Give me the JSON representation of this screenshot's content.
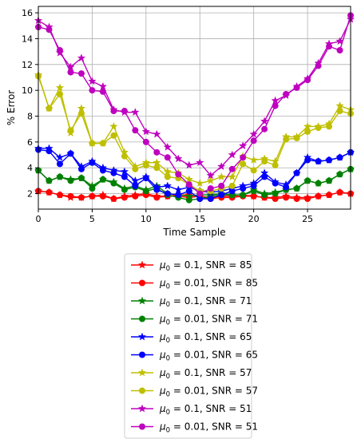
{
  "chart_data": {
    "type": "line",
    "xlabel": "Time Sample",
    "ylabel": "% Error",
    "xlim": [
      0,
      29
    ],
    "ylim": [
      0.8,
      16.5
    ],
    "xticks": [
      0,
      5,
      10,
      15,
      20,
      25
    ],
    "yticks": [
      2,
      4,
      6,
      8,
      10,
      12,
      14,
      16
    ],
    "grid": true,
    "legend_position": "bottom",
    "x": [
      0,
      1,
      2,
      3,
      4,
      5,
      6,
      7,
      8,
      9,
      10,
      11,
      12,
      13,
      14,
      15,
      16,
      17,
      18,
      19,
      20,
      21,
      22,
      23,
      24,
      25,
      26,
      27,
      28,
      29
    ],
    "series": [
      {
        "name": "μ0 = 0.1, SNR = 85",
        "label_math": {
          "sym": "μ",
          "sub": "0",
          "rest": " = 0.1, SNR = 85"
        },
        "color": "#ff0000",
        "marker": "star",
        "values": [
          2.2,
          2.1,
          1.9,
          1.7,
          1.7,
          1.8,
          1.9,
          1.6,
          1.8,
          1.9,
          2.0,
          1.8,
          1.8,
          1.9,
          1.9,
          1.8,
          1.7,
          1.8,
          1.8,
          1.9,
          1.8,
          1.7,
          1.7,
          1.8,
          1.7,
          1.7,
          1.8,
          1.9,
          2.1,
          2.0
        ]
      },
      {
        "name": "μ0 = 0.01, SNR = 85",
        "label_math": {
          "sym": "μ",
          "sub": "0",
          "rest": " = 0.01, SNR = 85"
        },
        "color": "#ff0000",
        "marker": "circle",
        "values": [
          2.2,
          2.1,
          1.9,
          1.8,
          1.7,
          1.8,
          1.8,
          1.6,
          1.7,
          1.8,
          1.9,
          1.7,
          1.8,
          1.8,
          1.7,
          1.8,
          1.6,
          1.7,
          1.7,
          1.8,
          1.8,
          1.7,
          1.6,
          1.7,
          1.6,
          1.6,
          1.8,
          1.9,
          2.1,
          2.0
        ]
      },
      {
        "name": "μ0 = 0.1, SNR = 71",
        "label_math": {
          "sym": "μ",
          "sub": "0",
          "rest": " = 0.1, SNR = 71"
        },
        "color": "#008000",
        "marker": "star",
        "values": [
          3.8,
          3.0,
          3.3,
          3.1,
          3.2,
          2.6,
          3.1,
          2.9,
          2.4,
          2.6,
          2.3,
          2.6,
          2.0,
          1.9,
          1.8,
          1.9,
          1.9,
          2.0,
          1.9,
          1.9,
          2.3,
          2.0,
          2.1,
          2.3,
          2.4,
          3.0,
          2.8,
          3.0,
          3.5,
          3.9
        ]
      },
      {
        "name": "μ0 = 0.01, SNR = 71",
        "label_math": {
          "sym": "μ",
          "sub": "0",
          "rest": " = 0.01, SNR = 71"
        },
        "color": "#008000",
        "marker": "circle",
        "values": [
          3.8,
          3.0,
          3.3,
          3.0,
          3.2,
          2.4,
          3.1,
          2.8,
          2.3,
          2.5,
          2.2,
          2.4,
          1.9,
          1.7,
          1.5,
          1.6,
          1.8,
          1.9,
          1.9,
          1.9,
          2.2,
          1.9,
          2.0,
          2.3,
          2.4,
          3.0,
          2.8,
          3.0,
          3.5,
          3.9
        ]
      },
      {
        "name": "μ0 = 0.1, SNR = 65",
        "label_math": {
          "sym": "μ",
          "sub": "0",
          "rest": " = 0.1, SNR = 65"
        },
        "color": "#0000ff",
        "marker": "star",
        "values": [
          5.5,
          5.5,
          4.8,
          5.1,
          4.1,
          4.5,
          4.0,
          3.8,
          3.7,
          3.0,
          3.3,
          2.5,
          2.6,
          2.3,
          2.5,
          2.2,
          2.1,
          2.2,
          2.4,
          2.6,
          2.8,
          3.6,
          2.9,
          2.7,
          3.6,
          4.8,
          4.5,
          4.6,
          4.8,
          5.2
        ]
      },
      {
        "name": "μ0 = 0.01, SNR = 65",
        "label_math": {
          "sym": "μ",
          "sub": "0",
          "rest": " = 0.01, SNR = 65"
        },
        "color": "#0000ff",
        "marker": "circle",
        "values": [
          5.4,
          5.3,
          4.3,
          5.1,
          3.9,
          4.4,
          3.8,
          3.6,
          3.3,
          2.6,
          3.2,
          2.3,
          2.0,
          1.9,
          2.2,
          1.6,
          1.6,
          1.9,
          2.2,
          2.4,
          2.6,
          3.3,
          2.8,
          2.5,
          3.6,
          4.6,
          4.5,
          4.6,
          4.8,
          5.2
        ]
      },
      {
        "name": "μ0 = 0.1, SNR = 57",
        "label_math": {
          "sym": "μ",
          "sub": "0",
          "rest": " = 0.1, SNR = 57"
        },
        "color": "#bfbf00",
        "marker": "star",
        "values": [
          11.2,
          8.6,
          10.2,
          6.7,
          8.6,
          5.9,
          5.9,
          7.2,
          5.2,
          4.1,
          4.4,
          4.4,
          3.7,
          3.6,
          3.1,
          2.8,
          3.0,
          3.3,
          3.3,
          4.9,
          4.6,
          4.7,
          4.5,
          6.4,
          6.4,
          7.2,
          7.2,
          7.4,
          8.8,
          8.5
        ]
      },
      {
        "name": "μ0 = 0.01, SNR = 57",
        "label_math": {
          "sym": "μ",
          "sub": "0",
          "rest": " = 0.01, SNR = 57"
        },
        "color": "#bfbf00",
        "marker": "circle",
        "values": [
          11.1,
          8.6,
          9.7,
          6.9,
          8.2,
          5.9,
          5.9,
          6.5,
          4.9,
          3.9,
          4.2,
          4.0,
          3.3,
          3.2,
          2.7,
          2.2,
          2.2,
          2.4,
          2.6,
          4.3,
          3.8,
          4.5,
          4.2,
          6.2,
          6.3,
          6.8,
          7.1,
          7.2,
          8.4,
          8.2
        ]
      },
      {
        "name": "μ0 = 0.1, SNR = 51",
        "label_math": {
          "sym": "μ",
          "sub": "0",
          "rest": " = 0.1, SNR = 51"
        },
        "color": "#bf00bf",
        "marker": "star",
        "values": [
          15.4,
          14.9,
          12.9,
          11.8,
          12.5,
          10.7,
          10.3,
          8.5,
          8.3,
          8.3,
          6.8,
          6.6,
          5.6,
          4.7,
          4.2,
          4.4,
          3.4,
          4.1,
          5.0,
          5.7,
          6.6,
          7.6,
          9.2,
          9.6,
          10.3,
          10.9,
          12.1,
          13.6,
          13.8,
          15.5
        ]
      },
      {
        "name": "μ0 = 0.01, SNR = 51",
        "label_math": {
          "sym": "μ",
          "sub": "0",
          "rest": " = 0.01, SNR = 51"
        },
        "color": "#bf00bf",
        "marker": "circle",
        "values": [
          14.9,
          14.7,
          13.1,
          11.4,
          11.3,
          10.0,
          9.9,
          8.4,
          8.4,
          6.9,
          6.0,
          5.2,
          4.8,
          3.5,
          2.7,
          2.0,
          2.4,
          2.6,
          3.9,
          4.8,
          6.1,
          7.0,
          8.8,
          9.7,
          10.2,
          10.8,
          11.9,
          13.4,
          13.1,
          15.8
        ]
      }
    ]
  }
}
